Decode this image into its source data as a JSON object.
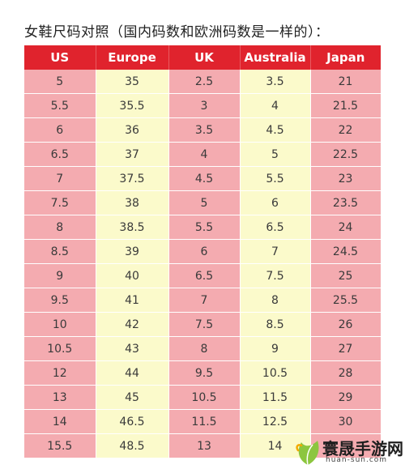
{
  "title": "女鞋尺码对照（国内码数和欧洲码数是一样的）：",
  "table": {
    "headers": [
      "US",
      "Europe",
      "UK",
      "Australia",
      "Japan"
    ],
    "rows": [
      [
        "5",
        "35",
        "2.5",
        "3.5",
        "21"
      ],
      [
        "5.5",
        "35.5",
        "3",
        "4",
        "21.5"
      ],
      [
        "6",
        "36",
        "3.5",
        "4.5",
        "22"
      ],
      [
        "6.5",
        "37",
        "4",
        "5",
        "22.5"
      ],
      [
        "7",
        "37.5",
        "4.5",
        "5.5",
        "23"
      ],
      [
        "7.5",
        "38",
        "5",
        "6",
        "23.5"
      ],
      [
        "8",
        "38.5",
        "5.5",
        "6.5",
        "24"
      ],
      [
        "8.5",
        "39",
        "6",
        "7",
        "24.5"
      ],
      [
        "9",
        "40",
        "6.5",
        "7.5",
        "25"
      ],
      [
        "9.5",
        "41",
        "7",
        "8",
        "25.5"
      ],
      [
        "10",
        "42",
        "7.5",
        "8.5",
        "26"
      ],
      [
        "10.5",
        "43",
        "8",
        "9",
        "27"
      ],
      [
        "12",
        "44",
        "9.5",
        "10.5",
        "28"
      ],
      [
        "13",
        "45",
        "10.5",
        "11.5",
        "29"
      ],
      [
        "14",
        "46.5",
        "11.5",
        "12.5",
        "30"
      ],
      [
        "15.5",
        "48.5",
        "13",
        "14",
        ""
      ]
    ]
  },
  "watermark": {
    "name": "寰晟手游网",
    "domain": "huan-sun.com"
  },
  "colors": {
    "header_bg": "#e0232d",
    "pink_column": "#f4abb0",
    "yellow_column": "#fbfacb"
  }
}
